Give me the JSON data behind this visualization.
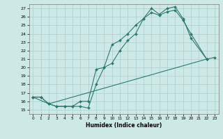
{
  "xlabel": "Humidex (Indice chaleur)",
  "xlim": [
    -0.5,
    23.5
  ],
  "ylim": [
    14.5,
    27.5
  ],
  "yticks": [
    15,
    16,
    17,
    18,
    19,
    20,
    21,
    22,
    23,
    24,
    25,
    26,
    27
  ],
  "xticks": [
    0,
    1,
    2,
    3,
    4,
    5,
    6,
    7,
    8,
    9,
    10,
    11,
    12,
    13,
    14,
    15,
    16,
    17,
    18,
    19,
    20,
    21,
    22,
    23
  ],
  "bg_color": "#cce9e5",
  "grid_color": "#aacfcc",
  "line_color": "#2a7a6e",
  "line1_x": [
    0,
    1,
    2,
    3,
    4,
    5,
    6,
    7,
    8,
    9,
    10,
    11,
    12,
    13,
    14,
    15,
    16,
    17,
    18,
    19,
    20,
    22
  ],
  "line1_y": [
    16.5,
    16.5,
    15.7,
    15.4,
    15.4,
    15.4,
    15.4,
    15.2,
    18.0,
    20.0,
    22.7,
    23.2,
    24.0,
    25.0,
    25.8,
    27.0,
    26.3,
    27.0,
    27.2,
    25.8,
    23.5,
    21.0
  ],
  "line2_x": [
    0,
    1,
    2,
    3,
    4,
    5,
    6,
    7,
    8,
    9,
    10,
    11,
    12,
    13,
    14,
    15,
    16,
    17,
    18,
    19,
    20,
    22
  ],
  "line2_y": [
    16.5,
    16.5,
    15.7,
    15.4,
    15.4,
    15.4,
    16.0,
    16.0,
    19.8,
    20.0,
    20.5,
    22.0,
    23.2,
    24.0,
    25.8,
    26.5,
    26.2,
    26.6,
    26.8,
    25.6,
    24.0,
    21.0
  ],
  "line3_x": [
    0,
    2,
    22,
    23
  ],
  "line3_y": [
    16.5,
    15.7,
    21.0,
    21.2
  ]
}
